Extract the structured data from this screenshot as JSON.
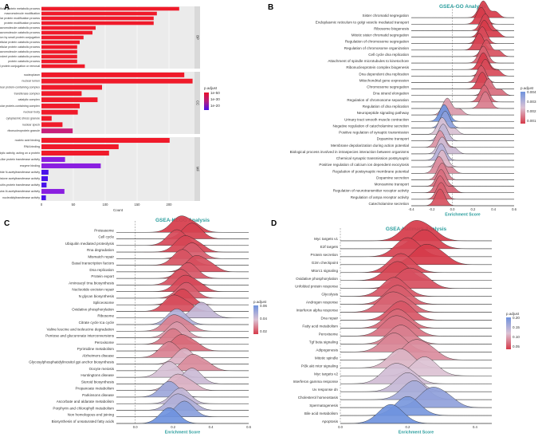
{
  "chart_data": [
    {
      "panel": "A",
      "type": "bar",
      "orientation": "horizontal",
      "xlabel": "Count",
      "xlim": [
        0,
        240
      ],
      "xticks": [
        0,
        50,
        100,
        150,
        200
      ],
      "legend_title": "p.adjust",
      "legend_labels": [
        "1e-50",
        "1e-30",
        "1e-20"
      ],
      "facets": [
        {
          "name": "BP",
          "categories": [
            "cellular protein metabolic process",
            "macromolecule modification",
            "cellular protein modification process",
            "protein modification process",
            "cellular macromolecule catabolic process",
            "macromolecule catabolic process",
            "protein modification by small protein conjugation",
            "cellular protein catabolic process",
            "proteolysis involved in cellular protein catabolic process",
            "modification-dependent macromolecule catabolic process",
            "modification-dependent protein catabolic process",
            "protein catabolic process",
            "protein modification by small protein conjugation or removal"
          ],
          "values": [
            216,
            181,
            176,
            176,
            85,
            80,
            66,
            60,
            56,
            56,
            56,
            56,
            68
          ]
        },
        {
          "name": "CC",
          "categories": [
            "nucleoplasm",
            "nuclear lumen",
            "nuclear protein-containing complex",
            "transferase complex",
            "catalytic complex",
            "intracellular protein-containing complex",
            "nuclear body",
            "cytoplasmic stress granule",
            "nuclear speck",
            "ribonucleoprotein granule"
          ],
          "values": [
            224,
            237,
            95,
            63,
            88,
            60,
            57,
            16,
            33,
            49
          ]
        },
        {
          "name": "MF",
          "categories": [
            "nucleic acid binding",
            "RNA binding",
            "catalytic activity, acting on a protein",
            "ubiquitin-like protein transferase activity",
            "enzyme binding",
            "peptide N-acetyltransferase activity",
            "histone acetyltransferase activity",
            "ubiquitin-protein transferase activity",
            "peptide-lysine-N-acetyltransferase activity",
            "nucleotidyltransferase activity"
          ],
          "values": [
            201,
            121,
            106,
            37,
            93,
            11,
            10,
            8,
            36,
            7
          ]
        }
      ]
    },
    {
      "panel": "B",
      "type": "ridgeline",
      "title": "GSEA-GO Analysis",
      "xlabel": "Enrichment Score",
      "xlim": [
        -0.4,
        0.6
      ],
      "xticks": [
        -0.4,
        -0.2,
        0.0,
        0.2,
        0.4,
        0.6
      ],
      "legend_title": "p.adjust",
      "legend_labels": [
        "0.004",
        "0.003",
        "0.002",
        "0.001"
      ],
      "series": [
        {
          "name": "Sister chromatid segregation",
          "peak": 0.3,
          "padj": 0.0003
        },
        {
          "name": "Endoplasmic reticulum to golgi vesicle mediated transport",
          "peak": 0.28,
          "padj": 0.0002
        },
        {
          "name": "Ribosome biogenesis",
          "peak": 0.32,
          "padj": 0.0004
        },
        {
          "name": "Mitotic sister chromatid segregation",
          "peak": 0.31,
          "padj": 0.0003
        },
        {
          "name": "Regulation of chromosome segregation",
          "peak": 0.29,
          "padj": 0.0005
        },
        {
          "name": "Regulation of chromosome organization",
          "peak": 0.26,
          "padj": 0.0004
        },
        {
          "name": "Cell cycle dna replication",
          "peak": 0.33,
          "padj": 0.0006
        },
        {
          "name": "Attachment of spindle microtubules to kinetochore",
          "peak": 0.3,
          "padj": 0.0008
        },
        {
          "name": "Ribonucleoprotein complex biogenesis",
          "peak": 0.3,
          "padj": 0.0003
        },
        {
          "name": "Dna dependent dna replication",
          "peak": 0.32,
          "padj": 0.0005
        },
        {
          "name": "Mitochondrial gene expression",
          "peak": 0.28,
          "padj": 0.0007
        },
        {
          "name": "Chromosome segregation",
          "peak": 0.29,
          "padj": 0.0004
        },
        {
          "name": "Dna strand elongation",
          "peak": 0.35,
          "padj": 0.001
        },
        {
          "name": "Regulation of chromosome separation",
          "peak": 0.31,
          "padj": 0.0009
        },
        {
          "name": "Regulation of dna replication",
          "peak": 0.32,
          "padj": 0.0012
        },
        {
          "name": "Neuropeptide signaling pathway",
          "peak": -0.05,
          "padj": 0.0016
        },
        {
          "name": "Urinary tract smooth muscle contraction",
          "peak": -0.08,
          "padj": 0.004
        },
        {
          "name": "Negative regulation of catecholamine secretion",
          "peak": -0.07,
          "padj": 0.0035
        },
        {
          "name": "Positive regulation of synaptic transmission",
          "peak": -0.1,
          "padj": 0.0022
        },
        {
          "name": "Dopamine transport",
          "peak": -0.09,
          "padj": 0.0026
        },
        {
          "name": "Membrane depolarization during action potential",
          "peak": -0.12,
          "padj": 0.0015
        },
        {
          "name": "Biological process involved in intraspecies interaction between organisms",
          "peak": -0.1,
          "padj": 0.0024
        },
        {
          "name": "Chemical synaptic transmission postsynaptic",
          "peak": -0.11,
          "padj": 0.0028
        },
        {
          "name": "Positive regulation of calcium ion dependent exocytosis",
          "peak": -0.1,
          "padj": 0.002
        },
        {
          "name": "Regulation of postsynaptic membrane potential",
          "peak": -0.13,
          "padj": 0.0014
        },
        {
          "name": "Dopamine secretion",
          "peak": -0.1,
          "padj": 0.0012
        },
        {
          "name": "Monoamine transport",
          "peak": -0.11,
          "padj": 0.001
        },
        {
          "name": "Regulation of neurotransmitter receptor activity",
          "peak": -0.12,
          "padj": 0.0009
        },
        {
          "name": "Regulation of ampa receptor activity",
          "peak": -0.11,
          "padj": 0.0008
        },
        {
          "name": "Catecholamine secretion",
          "peak": -0.12,
          "padj": 0.0006
        }
      ]
    },
    {
      "panel": "C",
      "type": "ridgeline",
      "title": "GSEA-KEGG Analysis",
      "xlabel": "Enrichment Score",
      "xlim": [
        -0.1,
        0.6
      ],
      "xticks": [
        0.0,
        0.2,
        0.4,
        0.6
      ],
      "legend_title": "p.adjust",
      "legend_labels": [
        "0.06",
        "0.04",
        "0.02"
      ],
      "series": [
        {
          "name": "Proteasome",
          "peak": 0.24,
          "padj": 0.005
        },
        {
          "name": "Cell cycle",
          "peak": 0.3,
          "padj": 0.006
        },
        {
          "name": "Ubiquitin mediated proteolysis",
          "peak": 0.22,
          "padj": 0.008
        },
        {
          "name": "Rna degradation",
          "peak": 0.26,
          "padj": 0.007
        },
        {
          "name": "Mismatch repair",
          "peak": 0.3,
          "padj": 0.012
        },
        {
          "name": "Basal transcription factors",
          "peak": 0.25,
          "padj": 0.01
        },
        {
          "name": "Dna replication",
          "peak": 0.32,
          "padj": 0.009
        },
        {
          "name": "Protein export",
          "peak": 0.28,
          "padj": 0.011
        },
        {
          "name": "Aminoacyl trna biosynthesis",
          "peak": 0.24,
          "padj": 0.01
        },
        {
          "name": "Nucleotide excision repair",
          "peak": 0.26,
          "padj": 0.008
        },
        {
          "name": "N glycan biosynthesis",
          "peak": 0.27,
          "padj": 0.012
        },
        {
          "name": "Spliceosome",
          "peak": 0.25,
          "padj": 0.007
        },
        {
          "name": "Oxidative phosphorylation",
          "peak": 0.2,
          "padj": 0.009
        },
        {
          "name": "Ribosome",
          "peak": 0.35,
          "padj": 0.04
        },
        {
          "name": "Citrate cycle tca cycle",
          "peak": 0.22,
          "padj": 0.045
        },
        {
          "name": "Valine leucine and isoleucine degradation",
          "peak": 0.2,
          "padj": 0.02
        },
        {
          "name": "Pentose and glucuronate interconversions",
          "peak": 0.22,
          "padj": 0.025
        },
        {
          "name": "Peroxisome",
          "peak": 0.2,
          "padj": 0.018
        },
        {
          "name": "Pyrimidine metabolism",
          "peak": 0.24,
          "padj": 0.015
        },
        {
          "name": "Alzheimers disease",
          "peak": 0.18,
          "padj": 0.02
        },
        {
          "name": "Glycosylphosphatidylinositol gpi anchor biosynthesis",
          "peak": 0.26,
          "padj": 0.03
        },
        {
          "name": "Oocyte meiosis",
          "peak": 0.3,
          "padj": 0.022
        },
        {
          "name": "Huntingtons disease",
          "peak": 0.18,
          "padj": 0.035
        },
        {
          "name": "Steroid biosynthesis",
          "peak": 0.3,
          "padj": 0.038
        },
        {
          "name": "Propanoate metabolism",
          "peak": 0.22,
          "padj": 0.03
        },
        {
          "name": "Parkinsons disease",
          "peak": 0.18,
          "padj": 0.05
        },
        {
          "name": "Ascorbate and aldarate metabolism",
          "peak": 0.24,
          "padj": 0.04
        },
        {
          "name": "Porphyrin and chlorophyll metabolism",
          "peak": 0.22,
          "padj": 0.045
        },
        {
          "name": "Non homologous end joining",
          "peak": 0.26,
          "padj": 0.055
        },
        {
          "name": "Biosynthesis of unsaturated fatty acids",
          "peak": 0.18,
          "padj": 0.062
        }
      ]
    },
    {
      "panel": "D",
      "type": "ridgeline",
      "title": "GSEA-Hallmark Analysis",
      "xlabel": "Enrichment Score",
      "xlim": [
        0.0,
        0.45
      ],
      "xticks": [
        0.0,
        0.2,
        0.4
      ],
      "legend_title": "p.adjust",
      "legend_labels": [
        "0.20",
        "0.15",
        "0.10",
        "0.05"
      ],
      "series": [
        {
          "name": "Myc targets v1",
          "peak": 0.22,
          "padj": 0.01
        },
        {
          "name": "E2f targets",
          "peak": 0.25,
          "padj": 0.012
        },
        {
          "name": "Protein secretion",
          "peak": 0.2,
          "padj": 0.015
        },
        {
          "name": "G2m checkpoint",
          "peak": 0.25,
          "padj": 0.01
        },
        {
          "name": "Mtorc1 signaling",
          "peak": 0.18,
          "padj": 0.02
        },
        {
          "name": "Oxidative phosphorylation",
          "peak": 0.17,
          "padj": 0.018
        },
        {
          "name": "Unfolded protein response",
          "peak": 0.2,
          "padj": 0.025
        },
        {
          "name": "Glycolysis",
          "peak": 0.16,
          "padj": 0.03
        },
        {
          "name": "Androgen response",
          "peak": 0.17,
          "padj": 0.035
        },
        {
          "name": "Interferon alpha response",
          "peak": 0.15,
          "padj": 0.04
        },
        {
          "name": "Dna repair",
          "peak": 0.18,
          "padj": 0.03
        },
        {
          "name": "Fatty acid metabolism",
          "peak": 0.17,
          "padj": 0.045
        },
        {
          "name": "Peroxisome",
          "peak": 0.16,
          "padj": 0.05
        },
        {
          "name": "Tgf beta signaling",
          "peak": 0.18,
          "padj": 0.06
        },
        {
          "name": "Adipogenesis",
          "peak": 0.16,
          "padj": 0.065
        },
        {
          "name": "Mitotic spindle",
          "peak": 0.22,
          "padj": 0.07
        },
        {
          "name": "Pi3k akt mtor signaling",
          "peak": 0.18,
          "padj": 0.1
        },
        {
          "name": "Myc targets v2",
          "peak": 0.25,
          "padj": 0.11
        },
        {
          "name": "Interferon gamma response",
          "peak": 0.16,
          "padj": 0.12
        },
        {
          "name": "Uv response dn",
          "peak": 0.2,
          "padj": 0.13
        },
        {
          "name": "Cholesterol homeostasis",
          "peak": 0.22,
          "padj": 0.16
        },
        {
          "name": "Spermatogenesis",
          "peak": 0.27,
          "padj": 0.18
        },
        {
          "name": "Bile acid metabolism",
          "peak": 0.2,
          "padj": 0.2
        },
        {
          "name": "Apoptosis",
          "peak": 0.15,
          "padj": 0.21
        }
      ]
    }
  ]
}
